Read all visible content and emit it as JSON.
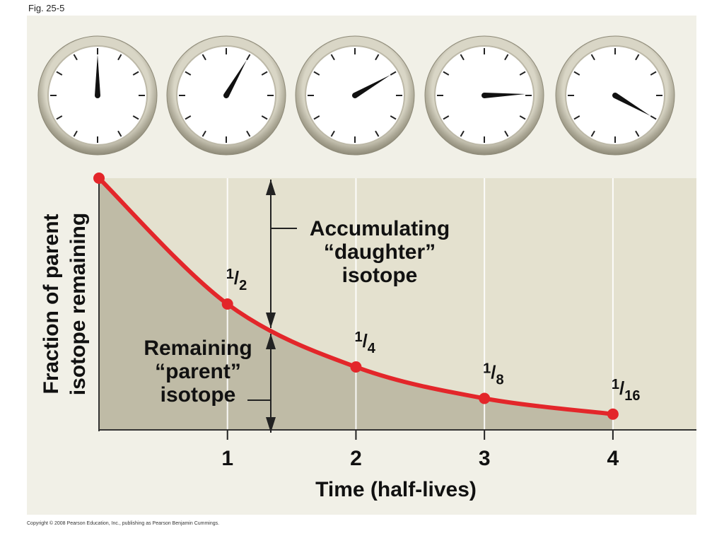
{
  "figure_label": "Fig. 25-5",
  "copyright": "Copyright © 2008 Pearson Education, Inc., publishing as Pearson Benjamin Cummings.",
  "chart_data": {
    "type": "line",
    "x_label": "Time (half-lives)",
    "y_label": [
      "Fraction of parent",
      "isotope remaining"
    ],
    "x": [
      0,
      1,
      2,
      3,
      4
    ],
    "values": [
      1,
      0.5,
      0.25,
      0.125,
      0.0625
    ],
    "value_labels": [
      null,
      "1/2",
      "1/4",
      "1/8",
      "1/16"
    ],
    "color": "#e3262a",
    "xlim": [
      0,
      4.65
    ],
    "ylim": [
      0,
      1
    ],
    "xticks": [
      1,
      2,
      3,
      4
    ],
    "grid": true,
    "annotations": [
      {
        "lines": [
          "Accumulating",
          "“daughter”",
          "isotope"
        ]
      },
      {
        "lines": [
          "Remaining",
          "“parent”",
          "isotope"
        ]
      }
    ]
  }
}
